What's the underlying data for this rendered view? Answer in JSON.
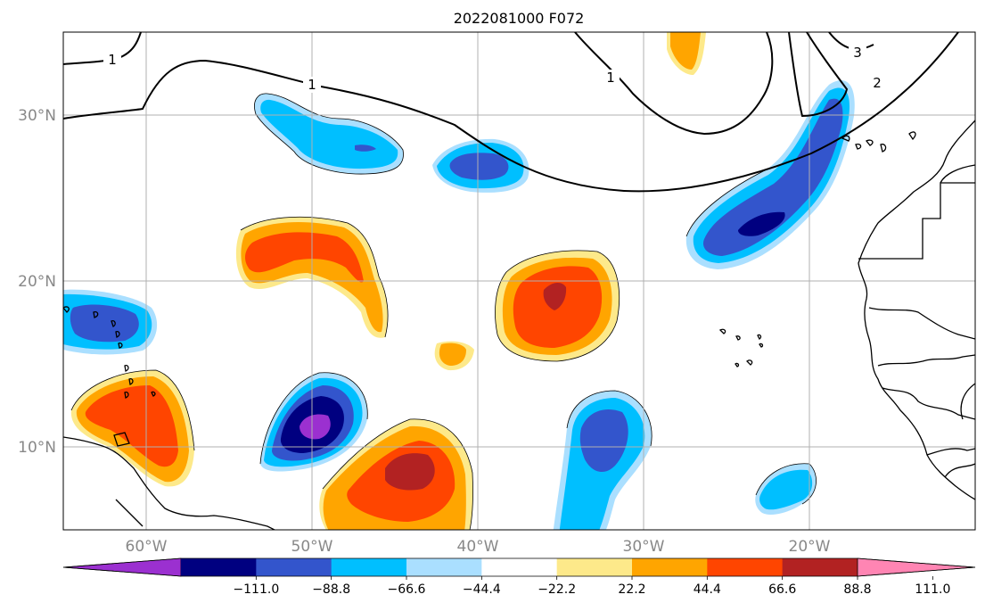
{
  "title": "2022081000 F072",
  "axes": {
    "lat_labels": [
      "30°N",
      "20°N",
      "10°N"
    ],
    "lon_labels": [
      "60°W",
      "50°W",
      "40°W",
      "30°W",
      "20°W"
    ],
    "lon_range": [
      -65,
      -10
    ],
    "lat_range": [
      5,
      35
    ],
    "grid": true
  },
  "colorbar": {
    "orientation": "horizontal",
    "extend": "both",
    "colors": [
      "#9b30d0",
      "#000080",
      "#3355cc",
      "#00bfff",
      "#aadfff",
      "#ffffff",
      "#fde98a",
      "#ffa500",
      "#ff4500",
      "#b22222",
      "#ff85b3"
    ],
    "tick_labels": [
      "−111.0",
      "−88.8",
      "−66.6",
      "−44.4",
      "−22.2",
      "22.2",
      "44.4",
      "66.6",
      "88.8",
      "111.0"
    ]
  },
  "contour_labels": [
    "1",
    "1",
    "1",
    "2",
    "3"
  ],
  "colors": {
    "coast": "#000000",
    "grid": "#b0b0b0",
    "contour": "#000000"
  },
  "chart_data": {
    "type": "map",
    "title": "2022081000 F072",
    "xlabel": "",
    "ylabel": "",
    "xlim": [
      -65,
      -10
    ],
    "ylim": [
      5,
      35
    ],
    "x_ticks": [
      "60°W",
      "50°W",
      "40°W",
      "30°W",
      "20°W"
    ],
    "y_ticks": [
      "30°N",
      "20°N",
      "10°N"
    ],
    "filled_contour_levels": [
      -133.2,
      -111.0,
      -88.8,
      -66.6,
      -44.4,
      -22.2,
      22.2,
      44.4,
      66.6,
      88.8,
      111.0,
      133.2
    ],
    "line_contour_labels": [
      1,
      1,
      1,
      2,
      3
    ],
    "grid": true
  }
}
